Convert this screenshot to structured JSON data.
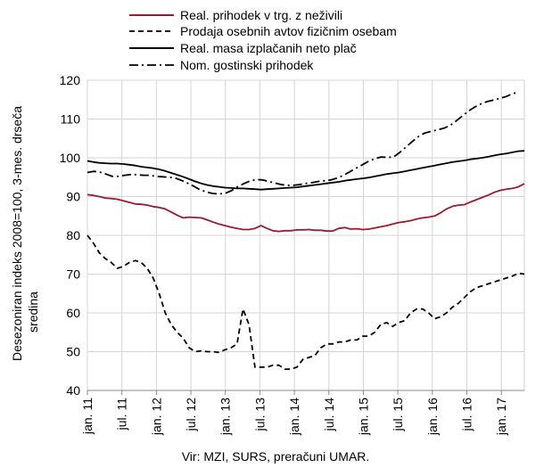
{
  "chart_data": {
    "type": "line",
    "ylabel_lines": [
      "Desezoniran indeks 2008=100, 3-mes. drseča",
      "sredina"
    ],
    "source": "Vir: MZI, SURS, preračuni UMAR.",
    "ylim": [
      40,
      120
    ],
    "yticks": [
      40,
      50,
      60,
      70,
      80,
      90,
      100,
      110,
      120
    ],
    "x_tick_labels": [
      "jan. 11",
      "jul. 11",
      "jan. 12",
      "jul. 12",
      "jan. 13",
      "jul. 13",
      "jan. 14",
      "jul. 14",
      "jan. 15",
      "jul. 15",
      "jan. 16",
      "jul. 16",
      "jan. 17"
    ],
    "x_start": "2011-01",
    "x_end": "2017-05",
    "grid": "horizontal and vertical",
    "legend_position": "top",
    "series": [
      {
        "name": "Real. prihodek v trg. z neživili",
        "color": "#9b1b30",
        "dash": "solid",
        "values": [
          90.5,
          90.3,
          90,
          89.6,
          89.5,
          89.3,
          88.9,
          88.5,
          88.1,
          88,
          87.8,
          87.4,
          87.2,
          86.8,
          86,
          85.2,
          84.5,
          84.7,
          84.6,
          84.5,
          84,
          83.4,
          82.9,
          82.5,
          82.1,
          81.8,
          81.5,
          81.5,
          81.8,
          82.5,
          81.8,
          81.2,
          81,
          81.2,
          81.2,
          81.4,
          81.4,
          81.5,
          81.3,
          81.3,
          81.1,
          81.1,
          81.8,
          82,
          81.6,
          81.7,
          81.5,
          81.6,
          81.9,
          82.2,
          82.5,
          82.9,
          83.3,
          83.5,
          83.8,
          84.2,
          84.5,
          84.7,
          85,
          85.8,
          86.8,
          87.5,
          87.8,
          87.9,
          88.6,
          89.2,
          89.8,
          90.4,
          91.1,
          91.6,
          91.9,
          92.1,
          92.5,
          93.3
        ]
      },
      {
        "name": "Prodaja osebnih avtov fizičnim osebam",
        "color": "#000000",
        "dash": "dashed",
        "values": [
          80,
          78,
          75.5,
          74,
          73,
          71.5,
          72,
          73,
          73.5,
          73,
          71.5,
          69,
          65,
          60,
          57,
          55,
          53.5,
          51,
          50,
          50.2,
          50,
          50,
          49.8,
          50.5,
          51,
          52,
          61,
          57,
          46,
          46,
          46,
          46.5,
          46.5,
          45.5,
          45.5,
          46,
          48,
          48.5,
          49,
          51,
          52,
          52,
          52.5,
          52.5,
          53,
          53,
          54,
          54,
          55,
          57,
          57.5,
          56.5,
          57.5,
          58,
          60,
          61,
          61,
          60,
          58.5,
          59,
          60,
          61.5,
          62.5,
          64,
          65.5,
          66.5,
          67,
          67.5,
          68,
          68.5,
          69,
          69.5,
          70.2,
          70
        ]
      },
      {
        "name": "Real. masa izplačanih neto plač",
        "color": "#000000",
        "dash": "solid",
        "values": [
          99.2,
          98.9,
          98.7,
          98.6,
          98.5,
          98.5,
          98.4,
          98.2,
          98,
          97.7,
          97.5,
          97.3,
          97,
          96.6,
          96.1,
          95.6,
          95.1,
          94.5,
          93.9,
          93.4,
          93,
          92.7,
          92.5,
          92.3,
          92.2,
          92.1,
          92.1,
          92,
          91.9,
          91.8,
          91.9,
          92,
          92.1,
          92.2,
          92.3,
          92.4,
          92.6,
          92.8,
          93,
          93.2,
          93.4,
          93.6,
          93.8,
          94.1,
          94.3,
          94.5,
          94.7,
          94.9,
          95.2,
          95.5,
          95.8,
          96,
          96.2,
          96.5,
          96.8,
          97.1,
          97.4,
          97.7,
          98,
          98.3,
          98.6,
          98.9,
          99.1,
          99.3,
          99.6,
          99.8,
          100,
          100.3,
          100.6,
          100.9,
          101.1,
          101.4,
          101.7,
          101.8
        ]
      },
      {
        "name": "Nom. gostinski prihodek",
        "color": "#000000",
        "dash": "dashdot",
        "values": [
          96.2,
          96.5,
          96.3,
          95.8,
          95.2,
          95.2,
          95.5,
          95.7,
          95.6,
          95.5,
          95.5,
          95.2,
          95.1,
          95,
          94.8,
          94.2,
          93.5,
          92.7,
          91.8,
          91.2,
          90.8,
          90.7,
          90.8,
          91.5,
          92.5,
          93.3,
          94,
          94.4,
          94.3,
          93.9,
          93.5,
          93.1,
          92.9,
          92.9,
          93.1,
          93.4,
          93.6,
          93.9,
          94.1,
          94.3,
          94.8,
          95.5,
          96.4,
          97.3,
          98.2,
          99.1,
          99.8,
          100.2,
          100.1,
          100.2,
          101.4,
          102.8,
          104.2,
          105.5,
          106.4,
          106.8,
          107.2,
          107.6,
          108.3,
          109.5,
          110.8,
          112.1,
          113.1,
          113.9,
          114.5,
          114.9,
          115.3,
          115.8,
          116.5,
          117
        ]
      }
    ]
  }
}
